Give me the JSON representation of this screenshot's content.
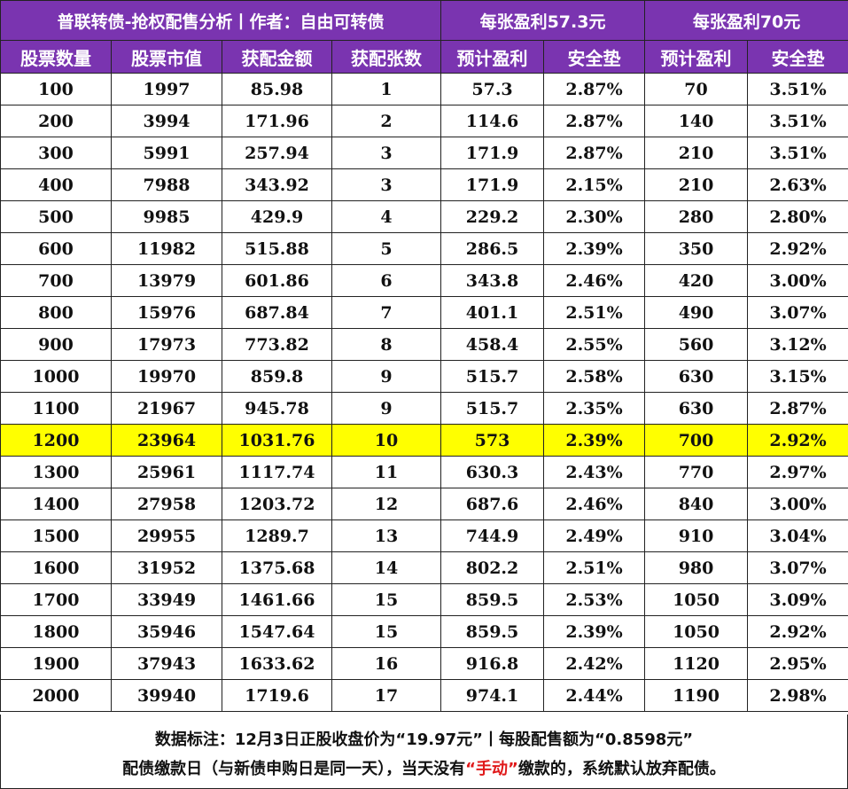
{
  "title": {
    "main": "普联转债-抢权配售分析丨作者：自由可转债",
    "group1": "每张盈利57.3元",
    "group2": "每张盈利70元"
  },
  "headers": [
    "股票数量",
    "股票市值",
    "获配金额",
    "获配张数",
    "预计盈利",
    "安全垫",
    "预计盈利",
    "安全垫"
  ],
  "rows": [
    [
      "100",
      "1997",
      "85.98",
      "1",
      "57.3",
      "2.87%",
      "70",
      "3.51%"
    ],
    [
      "200",
      "3994",
      "171.96",
      "2",
      "114.6",
      "2.87%",
      "140",
      "3.51%"
    ],
    [
      "300",
      "5991",
      "257.94",
      "3",
      "171.9",
      "2.87%",
      "210",
      "3.51%"
    ],
    [
      "400",
      "7988",
      "343.92",
      "3",
      "171.9",
      "2.15%",
      "210",
      "2.63%"
    ],
    [
      "500",
      "9985",
      "429.9",
      "4",
      "229.2",
      "2.30%",
      "280",
      "2.80%"
    ],
    [
      "600",
      "11982",
      "515.88",
      "5",
      "286.5",
      "2.39%",
      "350",
      "2.92%"
    ],
    [
      "700",
      "13979",
      "601.86",
      "6",
      "343.8",
      "2.46%",
      "420",
      "3.00%"
    ],
    [
      "800",
      "15976",
      "687.84",
      "7",
      "401.1",
      "2.51%",
      "490",
      "3.07%"
    ],
    [
      "900",
      "17973",
      "773.82",
      "8",
      "458.4",
      "2.55%",
      "560",
      "3.12%"
    ],
    [
      "1000",
      "19970",
      "859.8",
      "9",
      "515.7",
      "2.58%",
      "630",
      "3.15%"
    ],
    [
      "1100",
      "21967",
      "945.78",
      "9",
      "515.7",
      "2.35%",
      "630",
      "2.87%"
    ],
    [
      "1200",
      "23964",
      "1031.76",
      "10",
      "573",
      "2.39%",
      "700",
      "2.92%"
    ],
    [
      "1300",
      "25961",
      "1117.74",
      "11",
      "630.3",
      "2.43%",
      "770",
      "2.97%"
    ],
    [
      "1400",
      "27958",
      "1203.72",
      "12",
      "687.6",
      "2.46%",
      "840",
      "3.00%"
    ],
    [
      "1500",
      "29955",
      "1289.7",
      "13",
      "744.9",
      "2.49%",
      "910",
      "3.04%"
    ],
    [
      "1600",
      "31952",
      "1375.68",
      "14",
      "802.2",
      "2.51%",
      "980",
      "3.07%"
    ],
    [
      "1700",
      "33949",
      "1461.66",
      "15",
      "859.5",
      "2.53%",
      "1050",
      "3.09%"
    ],
    [
      "1800",
      "35946",
      "1547.64",
      "15",
      "859.5",
      "2.39%",
      "1050",
      "2.92%"
    ],
    [
      "1900",
      "37943",
      "1633.62",
      "16",
      "916.8",
      "2.42%",
      "1120",
      "2.95%"
    ],
    [
      "2000",
      "39940",
      "1719.6",
      "17",
      "974.1",
      "2.44%",
      "1190",
      "2.98%"
    ]
  ],
  "highlight_row": 11,
  "colors": {
    "header_bg": "#7a34b0",
    "highlight": "#ffff00",
    "emphasis": "#e0191a"
  },
  "footer": {
    "line1": "数据标注：12月3日正股收盘价为“19.97元”丨每股配售额为“0.8598元”",
    "line2_before": "配债缴款日（与新债申购日是同一天），当天没有",
    "line2_red": "“手动”",
    "line2_after": "缴款的，系统默认放弃配债。"
  }
}
